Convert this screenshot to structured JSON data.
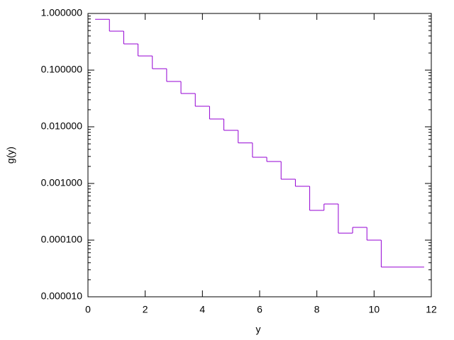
{
  "chart_data": {
    "type": "histogram",
    "xlabel": "y",
    "ylabel": "g(y)",
    "color": "#9400d3",
    "log_y": true,
    "bins": [
      0.25,
      0.75,
      1.25,
      1.75,
      2.25,
      2.75,
      3.25,
      3.75,
      4.25,
      4.75,
      5.25,
      5.75,
      6.25,
      6.75,
      7.25,
      7.75,
      8.25,
      8.75,
      9.25,
      9.75,
      10.25,
      11.75
    ],
    "values": [
      0.79,
      0.487,
      0.29,
      0.178,
      0.106,
      0.063,
      0.0387,
      0.023,
      0.0137,
      0.00866,
      0.0052,
      0.0029,
      0.00244,
      0.00119,
      0.00089,
      0.000335,
      0.000434,
      0.000133,
      0.000168,
      0.0001,
      3.35e-05
    ],
    "xlim": [
      0,
      12
    ],
    "xticks": [
      0,
      2,
      4,
      6,
      8,
      10,
      12
    ],
    "ylim": [
      1e-05,
      1
    ],
    "yticks": [
      {
        "value": 1e-05,
        "label": "0.000010"
      },
      {
        "value": 0.0001,
        "label": "0.000100"
      },
      {
        "value": 0.001,
        "label": "0.001000"
      },
      {
        "value": 0.01,
        "label": "0.010000"
      },
      {
        "value": 0.1,
        "label": "0.100000"
      },
      {
        "value": 1,
        "label": "1.000000"
      }
    ]
  }
}
